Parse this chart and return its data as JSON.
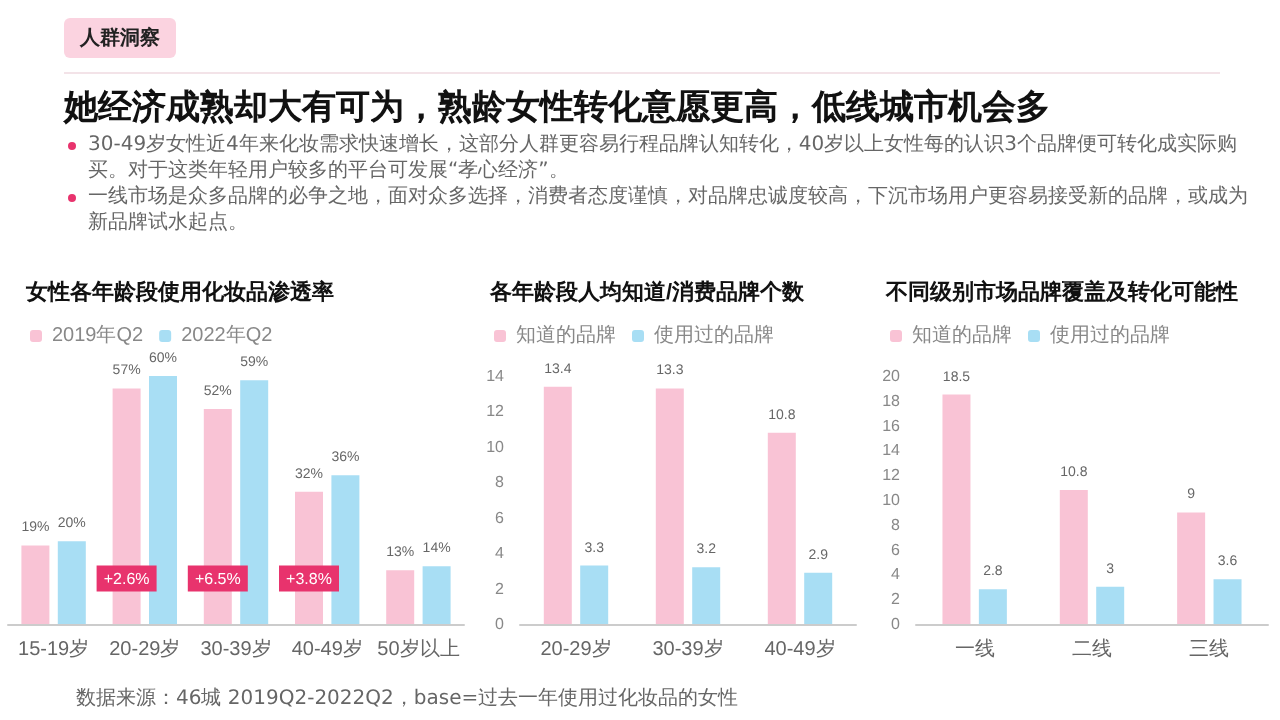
{
  "chart_data": [
    {
      "type": "other",
      "subtitle": "人群洞察",
      "title": "她经济成熟却大有可为，熟龄女性转化意愿更高，低线城市机会多",
      "annotations": [
        "30-49岁女性近4年来化妆需求快速增长，这部分人群更容易行程品牌认知转化，40岁以上女性每的认识3个品牌便可转化成实际购买。对于这类年轻用户较多的平台可发展“孝心经济”。",
        "一线市场是众多品牌的必争之地，面对众多选择，消费者态度谨慎，对品牌忠诚度较高，下沉市场用户更容易接受新的品牌，或成为新品牌试水起点。"
      ]
    },
    {
      "type": "bar",
      "title": "女性各年龄段使用化妆品渗透率",
      "categories": [
        "15-19岁",
        "20-29岁",
        "30-39岁",
        "40-49岁",
        "50岁以上"
      ],
      "tick_labels": "x",
      "legend": "top left",
      "series": [
        {
          "name": "2019年Q2",
          "color": "#f9c3d5",
          "values": [
            19,
            57,
            52,
            32,
            13
          ],
          "value_labels": [
            "19%",
            "57%",
            "52%",
            "32%",
            "13%"
          ]
        },
        {
          "name": "2022年Q2",
          "color": "#a8def4",
          "values": [
            20,
            60,
            59,
            36,
            14
          ],
          "value_labels": [
            "20%",
            "60%",
            "59%",
            "36%",
            "14%"
          ]
        }
      ],
      "annotations": [
        {
          "text": "+2.6%",
          "x": "20-29岁",
          "y": 11
        },
        {
          "text": "+6.5%",
          "x": "30-39岁",
          "y": 11
        },
        {
          "text": "+3.8%",
          "x": "40-49岁",
          "y": 11
        },
        "数据来源：46城 2019Q2-2022Q2，base=过去一年使用过化妆品的女性"
      ]
    },
    {
      "type": "bar",
      "title": "各年龄段人均知道/消费品牌个数",
      "categories": [
        "20-29岁",
        "30-39岁",
        "40-49岁"
      ],
      "ylim": [
        0,
        14
      ],
      "yticks": [
        0,
        2,
        4,
        6,
        8,
        10,
        12,
        14
      ],
      "data_labels": true,
      "legend": "top left",
      "series": [
        {
          "name": "知道的品牌",
          "color": "#f9c3d5",
          "values": [
            13.4,
            13.3,
            10.8
          ]
        },
        {
          "name": "使用过的品牌",
          "color": "#a8def4",
          "values": [
            3.3,
            3.2,
            2.9
          ]
        }
      ]
    },
    {
      "type": "bar",
      "title": "不同级别市场品牌覆盖及转化可能性",
      "categories": [
        "一线",
        "二线",
        "三线"
      ],
      "ylim": [
        0,
        20
      ],
      "yticks": [
        0,
        2,
        4,
        6,
        8,
        10,
        12,
        14,
        16,
        18,
        20
      ],
      "data_labels": true,
      "legend": "top left",
      "series": [
        {
          "name": "知道的品牌",
          "color": "#f9c3d5",
          "values": [
            18.5,
            10.8,
            9
          ]
        },
        {
          "name": "使用过的品牌",
          "color": "#a8def4",
          "values": [
            2.8,
            3,
            3.6
          ]
        }
      ]
    }
  ]
}
